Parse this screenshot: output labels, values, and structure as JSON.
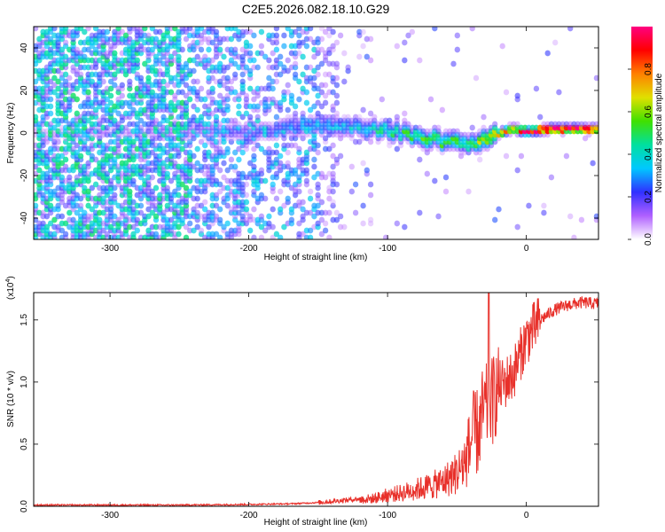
{
  "chart_data": [
    {
      "type": "heatmap",
      "title": "C2E5.2026.082.18.10.G29",
      "xlabel": "Height of straight line (km)",
      "ylabel": "Frequency (Hz)",
      "xlim": [
        -355,
        52
      ],
      "ylim": [
        -50,
        50
      ],
      "x_ticks": [
        -300,
        -200,
        -100,
        0
      ],
      "x_tick_labels": [
        "-300",
        "-200",
        "-100",
        "0"
      ],
      "y_ticks": [
        -40,
        -20,
        0,
        20,
        40
      ],
      "y_tick_labels": [
        "-40",
        "-20",
        "0",
        "20",
        "40"
      ],
      "colorbar": {
        "label": "Normalized spectral amplitude",
        "range": [
          0,
          1
        ],
        "ticks": [
          0.0,
          0.2,
          0.4,
          0.6,
          0.8
        ],
        "tick_labels": [
          "0.0",
          "0.2",
          "0.4",
          "0.6",
          "0.8"
        ],
        "colors": [
          "#ffffff",
          "#b060ff",
          "#3030ff",
          "#00c8ff",
          "#00e0a0",
          "#40e000",
          "#e0e000",
          "#ff8000",
          "#ff0000",
          "#ff0080"
        ]
      },
      "ridge": {
        "x": [
          -280,
          -240,
          -200,
          -160,
          -120,
          -90,
          -60,
          -45,
          -30,
          -20,
          -10,
          0,
          20,
          52
        ],
        "freq": [
          0,
          2,
          0,
          3,
          3,
          0,
          -4,
          -5,
          -3,
          0,
          2,
          1,
          2,
          2
        ],
        "amplitude": [
          0.1,
          0.15,
          0.2,
          0.3,
          0.35,
          0.45,
          0.5,
          0.45,
          0.6,
          0.7,
          0.85,
          0.9,
          0.95,
          0.95
        ]
      }
    },
    {
      "type": "line",
      "title": "",
      "xlabel": "Height of straight line (km)",
      "ylabel": "SNR (10 * v/v)",
      "y_exponent_label": "(x10",
      "y_exponent_power": "4",
      "y_exponent_close": ")",
      "xlim": [
        -355,
        52
      ],
      "ylim": [
        0,
        1.72
      ],
      "x_ticks": [
        -300,
        -200,
        -100,
        0
      ],
      "x_tick_labels": [
        "-300",
        "-200",
        "-100",
        "0"
      ],
      "y_ticks": [
        0,
        0.5,
        1.0,
        1.5
      ],
      "y_tick_labels": [
        "0.0",
        "0.5",
        "1.0",
        "1.5"
      ],
      "series": [
        {
          "name": "SNR",
          "color": "#e8302a",
          "x": [
            -355,
            -300,
            -250,
            -200,
            -170,
            -150,
            -130,
            -110,
            -100,
            -90,
            -80,
            -70,
            -60,
            -50,
            -45,
            -40,
            -35,
            -30,
            -28,
            -25,
            -20,
            -15,
            -10,
            -5,
            0,
            10,
            20,
            30,
            40,
            52
          ],
          "values": [
            0.01,
            0.01,
            0.01,
            0.015,
            0.02,
            0.03,
            0.05,
            0.07,
            0.1,
            0.12,
            0.15,
            0.18,
            0.22,
            0.3,
            0.38,
            0.55,
            0.6,
            0.75,
            1.72,
            0.85,
            0.95,
            1.0,
            1.05,
            1.2,
            1.35,
            1.5,
            1.58,
            1.62,
            1.64,
            1.63
          ]
        }
      ]
    }
  ]
}
